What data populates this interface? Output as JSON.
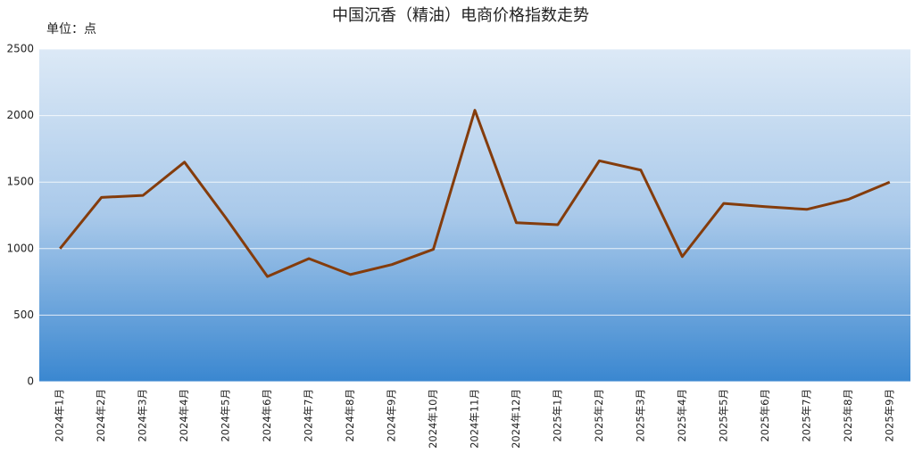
{
  "chart_data": {
    "type": "line",
    "title": "中国沉香（精油）电商价格指数走势",
    "unit_label": "单位：点",
    "categories": [
      "2024年1月",
      "2024年2月",
      "2024年3月",
      "2024年4月",
      "2024年5月",
      "2024年6月",
      "2024年7月",
      "2024年8月",
      "2024年9月",
      "2024年10月",
      "2024年11月",
      "2024年12月",
      "2025年1月",
      "2025年2月",
      "2025年3月",
      "2025年4月",
      "2025年5月",
      "2025年6月",
      "2025年7月",
      "2025年8月",
      "2025年9月"
    ],
    "series": [
      {
        "name": "价格指数",
        "color": "#843c0c",
        "values": [
          1000,
          1385,
          1400,
          1650,
          1230,
          790,
          925,
          805,
          880,
          995,
          2040,
          1195,
          1180,
          1660,
          1590,
          940,
          1340,
          1315,
          1295,
          1370,
          1500
        ]
      }
    ],
    "ylim": [
      0,
      2500
    ],
    "yticks": [
      0,
      500,
      1000,
      1500,
      2000,
      2500
    ],
    "grid": true
  }
}
